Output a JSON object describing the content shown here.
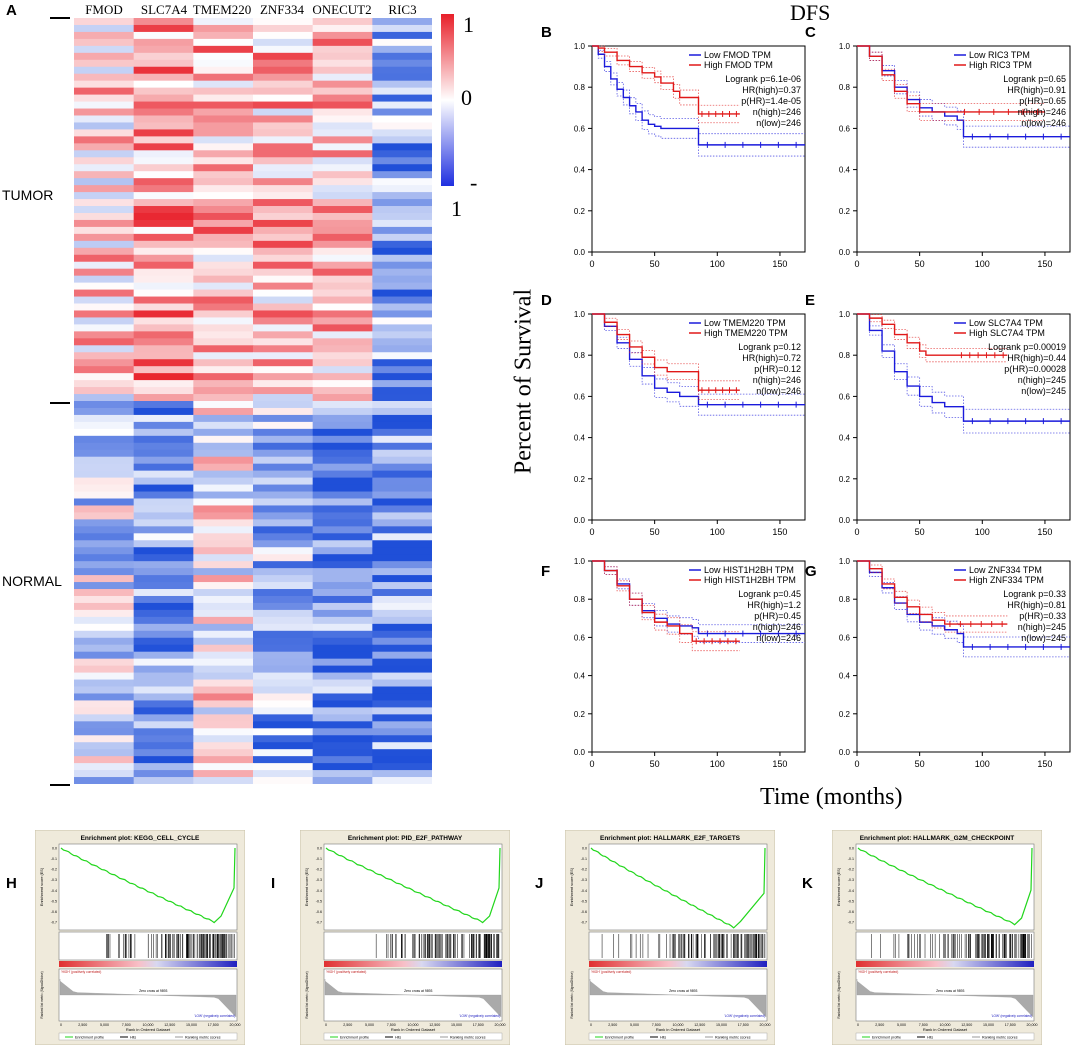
{
  "panel_a": {
    "label": "A",
    "genes": [
      "FMOD",
      "SLC7A4",
      "TMEM220",
      "ZNF334",
      "ONECUT2",
      "RIC3"
    ],
    "group_tumor": "TUMOR",
    "group_normal": "NORMAL",
    "legend_max": "1",
    "legend_mid": "0",
    "legend_min_sign": "-",
    "legend_min": "1",
    "colors": {
      "high": "#e8202a",
      "mid": "#ffffff",
      "low": "#1f4fd8"
    }
  },
  "dfs_title": "DFS",
  "km_ylabel": "Percent of Survival",
  "km_xlabel": "Time (months)",
  "chart_data": [
    {
      "type": "line",
      "panel": "B",
      "title": "",
      "xlim": [
        0,
        170
      ],
      "ylim": [
        0,
        1
      ],
      "xticks": [
        "0",
        "50",
        "100",
        "150"
      ],
      "yticks": [
        "0.0",
        "0.2",
        "0.4",
        "0.6",
        "0.8",
        "1.0"
      ],
      "legend": [
        "Low FMOD TPM",
        "High FMOD TPM"
      ],
      "stats": [
        "Logrank p=6.1e-06",
        "HR(high)=0.37",
        "p(HR)=1.4e-05",
        "n(high)=246",
        "n(low)=246"
      ],
      "series": [
        {
          "name": "Low FMOD TPM",
          "color": "#1a1adb",
          "x": [
            0,
            5,
            10,
            15,
            20,
            25,
            30,
            35,
            40,
            45,
            50,
            55,
            60,
            70,
            80,
            85,
            170
          ],
          "y": [
            1,
            0.96,
            0.9,
            0.84,
            0.79,
            0.75,
            0.71,
            0.68,
            0.64,
            0.62,
            0.61,
            0.6,
            0.6,
            0.6,
            0.6,
            0.52,
            0.52
          ]
        },
        {
          "name": "High FMOD TPM",
          "color": "#e01818",
          "x": [
            0,
            5,
            10,
            20,
            30,
            40,
            50,
            55,
            60,
            65,
            70,
            80,
            85,
            118
          ],
          "y": [
            1,
            0.99,
            0.97,
            0.93,
            0.9,
            0.87,
            0.85,
            0.82,
            0.82,
            0.78,
            0.75,
            0.75,
            0.67,
            0.67
          ]
        }
      ]
    },
    {
      "type": "line",
      "panel": "C",
      "title": "",
      "xlim": [
        0,
        170
      ],
      "ylim": [
        0,
        1
      ],
      "xticks": [
        "0",
        "50",
        "100",
        "150"
      ],
      "yticks": [
        "0.0",
        "0.2",
        "0.4",
        "0.6",
        "0.8",
        "1.0"
      ],
      "legend": [
        "Low RIC3 TPM",
        "High RIC3 TPM"
      ],
      "stats": [
        "Logrank p=0.65",
        "HR(high)=0.91",
        "p(HR)=0.65",
        "n(high)=246",
        "n(low)=246"
      ],
      "series": [
        {
          "name": "Low RIC3 TPM",
          "color": "#1a1adb",
          "x": [
            0,
            10,
            20,
            30,
            40,
            50,
            60,
            70,
            80,
            85,
            170
          ],
          "y": [
            1,
            0.95,
            0.88,
            0.8,
            0.74,
            0.7,
            0.68,
            0.66,
            0.64,
            0.56,
            0.56
          ]
        },
        {
          "name": "High RIC3 TPM",
          "color": "#e01818",
          "x": [
            0,
            10,
            20,
            30,
            40,
            50,
            60,
            70,
            80,
            150
          ],
          "y": [
            1,
            0.95,
            0.86,
            0.78,
            0.72,
            0.68,
            0.68,
            0.68,
            0.68,
            0.68
          ]
        }
      ]
    },
    {
      "type": "line",
      "panel": "D",
      "title": "",
      "xlim": [
        0,
        170
      ],
      "ylim": [
        0,
        1
      ],
      "xticks": [
        "0",
        "50",
        "100",
        "150"
      ],
      "yticks": [
        "0.0",
        "0.2",
        "0.4",
        "0.6",
        "0.8",
        "1.0"
      ],
      "legend": [
        "Low TMEM220 TPM",
        "High TMEM220 TPM"
      ],
      "stats": [
        "Logrank p=0.12",
        "HR(high)=0.72",
        "p(HR)=0.12",
        "n(high)=246",
        "n(low)=246"
      ],
      "series": [
        {
          "name": "Low TMEM220 TPM",
          "color": "#1a1adb",
          "x": [
            0,
            10,
            20,
            30,
            40,
            50,
            60,
            70,
            80,
            85,
            170
          ],
          "y": [
            1,
            0.94,
            0.86,
            0.78,
            0.7,
            0.64,
            0.62,
            0.6,
            0.6,
            0.56,
            0.56
          ]
        },
        {
          "name": "High TMEM220 TPM",
          "color": "#e01818",
          "x": [
            0,
            10,
            20,
            30,
            40,
            50,
            60,
            70,
            80,
            85,
            118
          ],
          "y": [
            1,
            0.96,
            0.9,
            0.84,
            0.79,
            0.74,
            0.72,
            0.72,
            0.72,
            0.63,
            0.63
          ]
        }
      ]
    },
    {
      "type": "line",
      "panel": "E",
      "title": "",
      "xlim": [
        0,
        170
      ],
      "ylim": [
        0,
        1
      ],
      "xticks": [
        "0",
        "50",
        "100",
        "150"
      ],
      "yticks": [
        "0.0",
        "0.2",
        "0.4",
        "0.6",
        "0.8",
        "1.0"
      ],
      "legend": [
        "Low SLC7A4 TPM",
        "High SLC7A4 TPM"
      ],
      "stats": [
        "Logrank p=0.00019",
        "HR(high)=0.44",
        "p(HR)=0.00028",
        "n(high)=245",
        "n(low)=245"
      ],
      "series": [
        {
          "name": "Low SLC7A4 TPM",
          "color": "#1a1adb",
          "x": [
            0,
            10,
            20,
            30,
            40,
            50,
            60,
            70,
            80,
            85,
            170
          ],
          "y": [
            1,
            0.92,
            0.82,
            0.72,
            0.65,
            0.6,
            0.57,
            0.55,
            0.55,
            0.48,
            0.48
          ]
        },
        {
          "name": "High SLC7A4 TPM",
          "color": "#e01818",
          "x": [
            0,
            10,
            20,
            30,
            40,
            50,
            55,
            60,
            80,
            120
          ],
          "y": [
            1,
            0.98,
            0.95,
            0.9,
            0.86,
            0.82,
            0.8,
            0.8,
            0.8,
            0.8
          ]
        }
      ]
    },
    {
      "type": "line",
      "panel": "F",
      "title": "",
      "xlim": [
        0,
        170
      ],
      "ylim": [
        0,
        1
      ],
      "xticks": [
        "0",
        "50",
        "100",
        "150"
      ],
      "yticks": [
        "0.0",
        "0.2",
        "0.4",
        "0.6",
        "0.8",
        "1.0"
      ],
      "legend": [
        "Low HIST1H2BH TPM",
        "High HIST1H2BH TPM"
      ],
      "stats": [
        "Logrank p=0.45",
        "HR(high)=1.2",
        "p(HR)=0.45",
        "n(high)=246",
        "n(low)=246"
      ],
      "series": [
        {
          "name": "Low HIST1H2BH TPM",
          "color": "#1a1adb",
          "x": [
            0,
            10,
            20,
            30,
            40,
            50,
            60,
            70,
            80,
            85,
            170
          ],
          "y": [
            1,
            0.95,
            0.88,
            0.8,
            0.74,
            0.7,
            0.67,
            0.66,
            0.65,
            0.62,
            0.62
          ]
        },
        {
          "name": "High HIST1H2BH TPM",
          "color": "#e01818",
          "x": [
            0,
            10,
            20,
            30,
            40,
            50,
            60,
            70,
            80,
            118
          ],
          "y": [
            1,
            0.95,
            0.87,
            0.8,
            0.73,
            0.68,
            0.66,
            0.62,
            0.58,
            0.58
          ]
        }
      ]
    },
    {
      "type": "line",
      "panel": "G",
      "title": "",
      "xlim": [
        0,
        170
      ],
      "ylim": [
        0,
        1
      ],
      "xticks": [
        "0",
        "50",
        "100",
        "150"
      ],
      "yticks": [
        "0.0",
        "0.2",
        "0.4",
        "0.6",
        "0.8",
        "1.0"
      ],
      "legend": [
        "Low ZNF334 TPM",
        "High ZNF334 TPM"
      ],
      "stats": [
        "Logrank p=0.33",
        "HR(high)=0.81",
        "p(HR)=0.33",
        "n(high)=245",
        "n(low)=245"
      ],
      "series": [
        {
          "name": "Low ZNF334 TPM",
          "color": "#1a1adb",
          "x": [
            0,
            10,
            20,
            30,
            40,
            50,
            60,
            70,
            80,
            85,
            170
          ],
          "y": [
            1,
            0.94,
            0.86,
            0.78,
            0.72,
            0.68,
            0.66,
            0.64,
            0.62,
            0.55,
            0.55
          ]
        },
        {
          "name": "High ZNF334 TPM",
          "color": "#e01818",
          "x": [
            0,
            10,
            20,
            30,
            40,
            50,
            60,
            70,
            120
          ],
          "y": [
            1,
            0.96,
            0.88,
            0.81,
            0.76,
            0.72,
            0.69,
            0.67,
            0.67
          ]
        }
      ]
    }
  ],
  "gsea": [
    {
      "label": "H",
      "title": "Enrichment plot: KEGG_CELL_CYCLE",
      "min_es": -0.7,
      "trough": 0.88,
      "yticks": [
        "0.0",
        "-0.1",
        "-0.2",
        "-0.3",
        "-0.4",
        "-0.5",
        "-0.6",
        "-0.7"
      ]
    },
    {
      "label": "I",
      "title": "Enrichment plot: PID_E2F_PATHWAY",
      "min_es": -0.7,
      "trough": 0.9,
      "yticks": [
        "0.0",
        "-0.1",
        "-0.2",
        "-0.3",
        "-0.4",
        "-0.5",
        "-0.6",
        "-0.7"
      ]
    },
    {
      "label": "J",
      "title": "Enrichment plot: HALLMARK_E2F_TARGETS",
      "min_es": -0.75,
      "trough": 0.82,
      "yticks": [
        "0.0",
        "-0.1",
        "-0.2",
        "-0.3",
        "-0.4",
        "-0.5",
        "-0.6",
        "-0.7"
      ]
    },
    {
      "label": "K",
      "title": "Enrichment plot: HALLMARK_G2M_CHECKPOINT",
      "min_es": -0.72,
      "trough": 0.9,
      "yticks": [
        "0.0",
        "-0.1",
        "-0.2",
        "-0.3",
        "-0.4",
        "-0.5",
        "-0.6",
        "-0.7"
      ]
    }
  ],
  "gsea_common": {
    "es_ylabel": "Enrichment score (ES)",
    "rank_ylabel": "Ranked list metric (Signal2Noise)",
    "xlabel": "Rank in Ordered Dataset",
    "xticks": [
      "0",
      "2,500",
      "5,000",
      "7,500",
      "10,000",
      "12,500",
      "15,000",
      "17,500",
      "20,000"
    ],
    "high_label": "'HIGH' (positively correlated)",
    "low_label": "'LOW' (negatively correlated)",
    "zero_cross": "Zero cross at 9893",
    "legend": [
      "Enrichment profile",
      "Hits",
      "Ranking metric scores"
    ]
  }
}
